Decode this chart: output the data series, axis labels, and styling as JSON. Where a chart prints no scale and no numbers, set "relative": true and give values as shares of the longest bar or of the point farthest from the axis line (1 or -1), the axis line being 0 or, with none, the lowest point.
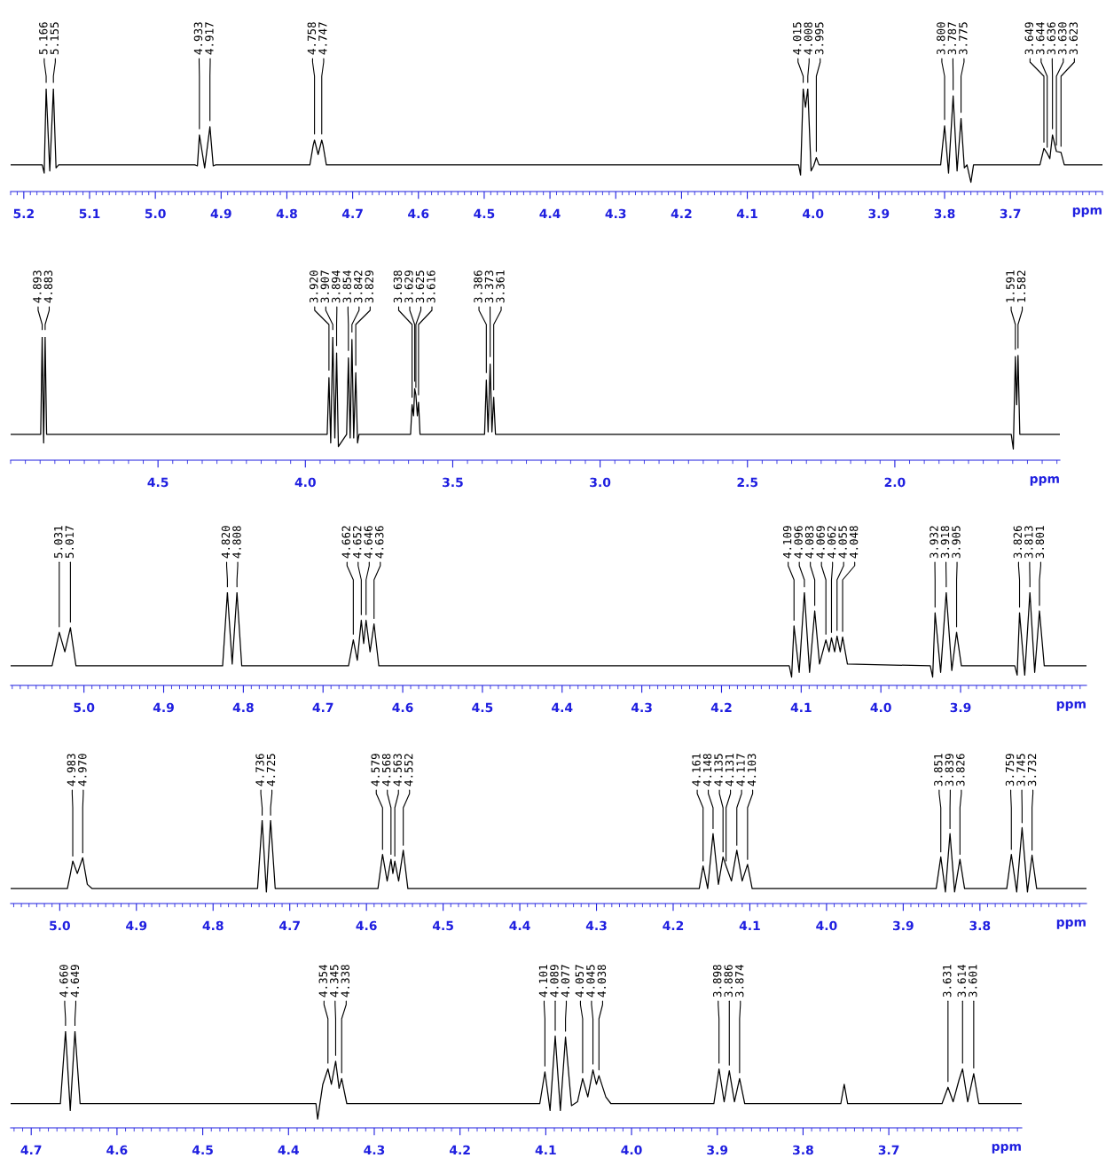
{
  "chart_data": [
    {
      "type": "line",
      "relative": true,
      "color": "#000000",
      "xlabel": "ppm",
      "xlim": [
        5.22,
        3.56
      ],
      "xticks": [
        5.2,
        5.1,
        {
          "value": 5,
          "label": "5.0"
        },
        4.9,
        4.8,
        4.7,
        4.6,
        4.5,
        4.4,
        4.3,
        4.2,
        4.1,
        {
          "value": 4,
          "label": "4.0"
        },
        3.9,
        3.8,
        3.7
      ],
      "x": [
        5.22,
        5.172,
        5.169,
        5.166,
        5.1605,
        5.155,
        5.151,
        5.147,
        4.94,
        4.936,
        4.933,
        4.925,
        4.917,
        4.912,
        4.908,
        4.765,
        4.76,
        4.758,
        4.7525,
        4.747,
        4.745,
        4.74,
        4.022,
        4.019,
        4.015,
        4.0115,
        4.008,
        4.003,
        3.999,
        3.995,
        3.991,
        3.806,
        3.8,
        3.794,
        3.787,
        3.781,
        3.775,
        3.77,
        3.766,
        3.76,
        3.756,
        3.655,
        3.649,
        3.644,
        3.64,
        3.636,
        3.63,
        3.623,
        3.618,
        3.56
      ],
      "values": [
        0.26,
        0.26,
        0.18,
        1,
        0.2,
        1,
        0.23,
        0.26,
        0.26,
        0.25,
        0.55,
        0.23,
        0.63,
        0.25,
        0.26,
        0.26,
        0.45,
        0.5,
        0.36,
        0.5,
        0.45,
        0.26,
        0.26,
        0.16,
        1,
        0.82,
        1,
        0.2,
        0.25,
        0.33,
        0.26,
        0.26,
        0.64,
        0.18,
        0.93,
        0.2,
        0.71,
        0.23,
        0.26,
        0.09,
        0.26,
        0.26,
        0.42,
        0.37,
        0.32,
        0.55,
        0.39,
        0.38,
        0.26,
        0.26
      ],
      "annotations": [
        {
          "text": "5.166",
          "x": 5.166,
          "y": 1
        },
        {
          "text": "5.155",
          "x": 5.155,
          "y": 1
        },
        {
          "text": "4.933",
          "x": 4.933,
          "y": 0.55
        },
        {
          "text": "4.917",
          "x": 4.917,
          "y": 0.63
        },
        {
          "text": "4.758",
          "x": 4.758,
          "y": 0.5
        },
        {
          "text": "4.747",
          "x": 4.747,
          "y": 0.5
        },
        {
          "text": "4.015",
          "x": 4.015,
          "y": 1
        },
        {
          "text": "4.008",
          "x": 4.008,
          "y": 1
        },
        {
          "text": "3.995",
          "x": 3.995,
          "y": 0.33
        },
        {
          "text": "3.800",
          "x": 3.8,
          "y": 0.64
        },
        {
          "text": "3.787",
          "x": 3.787,
          "y": 0.93
        },
        {
          "text": "3.775",
          "x": 3.775,
          "y": 0.71
        },
        {
          "text": "3.649",
          "x": 3.649,
          "y": 0.42
        },
        {
          "text": "3.644",
          "x": 3.644,
          "y": 0.37
        },
        {
          "text": "3.636",
          "x": 3.636,
          "y": 0.55
        },
        {
          "text": "3.630",
          "x": 3.63,
          "y": 0.39
        },
        {
          "text": "3.623",
          "x": 3.623,
          "y": 0.38
        }
      ]
    },
    {
      "type": "line",
      "relative": true,
      "color": "#000000",
      "xlabel": "ppm",
      "xlim": [
        5.0,
        1.44
      ],
      "xticks": [
        4.5,
        {
          "value": 4,
          "label": "4.0"
        },
        3.5,
        {
          "value": 3,
          "label": "3.0"
        },
        2.5,
        {
          "value": 2,
          "label": "2.0"
        }
      ],
      "x": [
        5.0,
        4.898,
        4.893,
        4.888,
        4.883,
        4.878,
        3.926,
        3.92,
        3.914,
        3.907,
        3.9,
        3.894,
        3.888,
        3.86,
        3.854,
        3.848,
        3.842,
        3.836,
        3.829,
        3.823,
        3.818,
        3.643,
        3.638,
        3.633,
        3.629,
        3.625,
        3.62,
        3.616,
        3.611,
        3.392,
        3.386,
        3.38,
        3.373,
        3.367,
        3.361,
        3.355,
        1.605,
        1.598,
        1.591,
        1.5865,
        1.582,
        1.576,
        1.44
      ],
      "values": [
        0.21,
        0.21,
        1,
        0.14,
        1,
        0.21,
        0.21,
        0.67,
        0.14,
        1,
        0.18,
        0.87,
        0.11,
        0.21,
        0.83,
        0.18,
        0.98,
        0.18,
        0.71,
        0.14,
        0.21,
        0.21,
        0.45,
        0.36,
        0.58,
        0.53,
        0.36,
        0.47,
        0.21,
        0.21,
        0.65,
        0.23,
        0.78,
        0.23,
        0.51,
        0.21,
        0.21,
        0.09,
        0.84,
        0.45,
        0.85,
        0.21,
        0.21
      ],
      "annotations": [
        {
          "text": "4.893",
          "x": 4.893,
          "y": 1
        },
        {
          "text": "4.883",
          "x": 4.883,
          "y": 1
        },
        {
          "text": "3.920",
          "x": 3.92,
          "y": 0.67
        },
        {
          "text": "3.907",
          "x": 3.907,
          "y": 1
        },
        {
          "text": "3.894",
          "x": 3.894,
          "y": 0.87
        },
        {
          "text": "3.854",
          "x": 3.854,
          "y": 0.83
        },
        {
          "text": "3.842",
          "x": 3.842,
          "y": 0.98
        },
        {
          "text": "3.829",
          "x": 3.829,
          "y": 0.71
        },
        {
          "text": "3.638",
          "x": 3.638,
          "y": 0.45
        },
        {
          "text": "3.629",
          "x": 3.629,
          "y": 0.58
        },
        {
          "text": "3.625",
          "x": 3.625,
          "y": 0.53
        },
        {
          "text": "3.616",
          "x": 3.616,
          "y": 0.47
        },
        {
          "text": "3.386",
          "x": 3.386,
          "y": 0.65
        },
        {
          "text": "3.373",
          "x": 3.373,
          "y": 0.78
        },
        {
          "text": "3.361",
          "x": 3.361,
          "y": 0.51
        },
        {
          "text": "1.591",
          "x": 1.591,
          "y": 0.84
        },
        {
          "text": "1.582",
          "x": 1.582,
          "y": 0.85
        }
      ]
    },
    {
      "type": "line",
      "relative": true,
      "color": "#000000",
      "xlabel": "ppm",
      "xlim": [
        5.092,
        3.742
      ],
      "xticks": [
        {
          "value": 5,
          "label": "5.0"
        },
        4.9,
        4.8,
        4.7,
        4.6,
        4.5,
        4.4,
        4.3,
        4.2,
        4.1,
        {
          "value": 4,
          "label": "4.0"
        },
        3.9
      ],
      "x": [
        5.092,
        5.04,
        5.031,
        5.024,
        5.017,
        5.01,
        4.826,
        4.82,
        4.814,
        4.808,
        4.802,
        4.668,
        4.662,
        4.657,
        4.652,
        4.649,
        4.646,
        4.641,
        4.636,
        4.63,
        4.115,
        4.112,
        4.109,
        4.1025,
        4.096,
        4.0895,
        4.083,
        4.077,
        4.069,
        4.065,
        4.062,
        4.058,
        4.055,
        4.051,
        4.048,
        4.042,
        3.938,
        3.935,
        3.932,
        3.925,
        3.918,
        3.911,
        3.905,
        3.899,
        3.832,
        3.829,
        3.826,
        3.8195,
        3.813,
        3.807,
        3.801,
        3.795,
        3.742
      ],
      "values": [
        0.21,
        0.21,
        0.57,
        0.36,
        0.62,
        0.21,
        0.21,
        1,
        0.23,
        1,
        0.21,
        0.21,
        0.49,
        0.27,
        0.7,
        0.45,
        0.7,
        0.36,
        0.66,
        0.21,
        0.21,
        0.09,
        0.64,
        0.14,
        1,
        0.14,
        0.8,
        0.23,
        0.49,
        0.36,
        0.51,
        0.36,
        0.53,
        0.36,
        0.52,
        0.23,
        0.21,
        0.09,
        0.78,
        0.14,
        1,
        0.16,
        0.57,
        0.21,
        0.21,
        0.11,
        0.78,
        0.11,
        1,
        0.14,
        0.8,
        0.21,
        0.21
      ],
      "annotations": [
        {
          "text": "5.031",
          "x": 5.031,
          "y": 0.57
        },
        {
          "text": "5.017",
          "x": 5.017,
          "y": 0.62
        },
        {
          "text": "4.820",
          "x": 4.82,
          "y": 1
        },
        {
          "text": "4.808",
          "x": 4.808,
          "y": 1
        },
        {
          "text": "4.662",
          "x": 4.662,
          "y": 0.49
        },
        {
          "text": "4.652",
          "x": 4.652,
          "y": 0.7
        },
        {
          "text": "4.646",
          "x": 4.646,
          "y": 0.7
        },
        {
          "text": "4.636",
          "x": 4.636,
          "y": 0.66
        },
        {
          "text": "4.109",
          "x": 4.109,
          "y": 0.64
        },
        {
          "text": "4.096",
          "x": 4.096,
          "y": 1
        },
        {
          "text": "4.083",
          "x": 4.083,
          "y": 0.8
        },
        {
          "text": "4.069",
          "x": 4.069,
          "y": 0.49
        },
        {
          "text": "4.062",
          "x": 4.062,
          "y": 0.51
        },
        {
          "text": "4.055",
          "x": 4.055,
          "y": 0.53
        },
        {
          "text": "4.048",
          "x": 4.048,
          "y": 0.52
        },
        {
          "text": "3.932",
          "x": 3.932,
          "y": 0.78
        },
        {
          "text": "3.918",
          "x": 3.918,
          "y": 1
        },
        {
          "text": "3.905",
          "x": 3.905,
          "y": 0.57
        },
        {
          "text": "3.826",
          "x": 3.826,
          "y": 0.78
        },
        {
          "text": "3.813",
          "x": 3.813,
          "y": 1
        },
        {
          "text": "3.801",
          "x": 3.801,
          "y": 0.8
        }
      ]
    },
    {
      "type": "line",
      "relative": true,
      "color": "#000000",
      "xlabel": "ppm",
      "xlim": [
        5.064,
        3.661
      ],
      "xticks": [
        {
          "value": 5,
          "label": "5.0"
        },
        4.9,
        4.8,
        4.7,
        4.6,
        4.5,
        4.4,
        4.3,
        4.2,
        4.1,
        {
          "value": 4,
          "label": "4.0"
        },
        3.9,
        3.8
      ],
      "x": [
        5.064,
        4.99,
        4.986,
        4.983,
        4.977,
        4.97,
        4.964,
        4.958,
        4.742,
        4.736,
        4.7305,
        4.725,
        4.719,
        4.585,
        4.579,
        4.573,
        4.568,
        4.5655,
        4.563,
        4.558,
        4.552,
        4.546,
        4.166,
        4.161,
        4.155,
        4.148,
        4.141,
        4.135,
        4.131,
        4.124,
        4.117,
        4.11,
        4.103,
        4.097,
        3.857,
        3.851,
        3.845,
        3.839,
        3.833,
        3.826,
        3.82,
        3.765,
        3.759,
        3.752,
        3.745,
        3.738,
        3.732,
        3.726,
        3.661
      ],
      "values": [
        0.18,
        0.18,
        0.36,
        0.51,
        0.36,
        0.55,
        0.23,
        0.18,
        0.18,
        1,
        0.14,
        1,
        0.18,
        0.18,
        0.59,
        0.27,
        0.53,
        0.36,
        0.51,
        0.27,
        0.64,
        0.18,
        0.18,
        0.45,
        0.18,
        0.84,
        0.23,
        0.56,
        0.45,
        0.27,
        0.64,
        0.27,
        0.47,
        0.18,
        0.18,
        0.56,
        0.14,
        0.84,
        0.14,
        0.53,
        0.18,
        0.18,
        0.59,
        0.14,
        0.91,
        0.14,
        0.58,
        0.18,
        0.18
      ],
      "annotations": [
        {
          "text": "4.983",
          "x": 4.983,
          "y": 0.51
        },
        {
          "text": "4.970",
          "x": 4.97,
          "y": 0.55
        },
        {
          "text": "4.736",
          "x": 4.736,
          "y": 1
        },
        {
          "text": "4.725",
          "x": 4.725,
          "y": 1
        },
        {
          "text": "4.579",
          "x": 4.579,
          "y": 0.59
        },
        {
          "text": "4.568",
          "x": 4.568,
          "y": 0.53
        },
        {
          "text": "4.563",
          "x": 4.563,
          "y": 0.51
        },
        {
          "text": "4.552",
          "x": 4.552,
          "y": 0.64
        },
        {
          "text": "4.161",
          "x": 4.161,
          "y": 0.45
        },
        {
          "text": "4.148",
          "x": 4.148,
          "y": 0.84
        },
        {
          "text": "4.135",
          "x": 4.135,
          "y": 0.56
        },
        {
          "text": "4.131",
          "x": 4.131,
          "y": 0.45
        },
        {
          "text": "4.117",
          "x": 4.117,
          "y": 0.64
        },
        {
          "text": "4.103",
          "x": 4.103,
          "y": 0.47
        },
        {
          "text": "3.851",
          "x": 3.851,
          "y": 0.56
        },
        {
          "text": "3.839",
          "x": 3.839,
          "y": 0.84
        },
        {
          "text": "3.826",
          "x": 3.826,
          "y": 0.53
        },
        {
          "text": "3.759",
          "x": 3.759,
          "y": 0.59
        },
        {
          "text": "3.745",
          "x": 3.745,
          "y": 0.91
        },
        {
          "text": "3.732",
          "x": 3.732,
          "y": 0.58
        }
      ]
    },
    {
      "type": "line",
      "relative": true,
      "color": "#000000",
      "xlabel": "ppm",
      "xlim": [
        4.724,
        3.545
      ],
      "xticks": [
        4.7,
        4.6,
        4.5,
        4.4,
        4.3,
        4.2,
        4.1,
        {
          "value": 4,
          "label": "4.0"
        },
        3.9,
        3.8,
        3.7
      ],
      "x": [
        4.724,
        4.666,
        4.66,
        4.6545,
        4.649,
        4.643,
        4.368,
        4.366,
        4.36,
        4.354,
        4.35,
        4.345,
        4.341,
        4.338,
        4.332,
        4.107,
        4.101,
        4.095,
        4.089,
        4.083,
        4.077,
        4.07,
        4.063,
        4.057,
        4.051,
        4.045,
        4.041,
        4.038,
        4.03,
        4.024,
        3.904,
        3.898,
        3.892,
        3.886,
        3.88,
        3.874,
        3.868,
        3.756,
        3.752,
        3.748,
        3.638,
        3.631,
        3.625,
        3.618,
        3.614,
        3.608,
        3.601,
        3.595,
        3.545
      ],
      "values": [
        0.25,
        0.25,
        1,
        0.18,
        1,
        0.25,
        0.25,
        0.09,
        0.45,
        0.61,
        0.45,
        0.69,
        0.41,
        0.51,
        0.25,
        0.25,
        0.58,
        0.18,
        0.95,
        0.18,
        0.94,
        0.23,
        0.27,
        0.51,
        0.32,
        0.6,
        0.45,
        0.54,
        0.32,
        0.25,
        0.25,
        0.61,
        0.27,
        0.59,
        0.27,
        0.51,
        0.25,
        0.25,
        0.45,
        0.25,
        0.25,
        0.42,
        0.27,
        0.5,
        0.61,
        0.27,
        0.56,
        0.25,
        0.25
      ],
      "annotations": [
        {
          "text": "4.660",
          "x": 4.66,
          "y": 1
        },
        {
          "text": "4.649",
          "x": 4.649,
          "y": 1
        },
        {
          "text": "4.354",
          "x": 4.354,
          "y": 0.61
        },
        {
          "text": "4.345",
          "x": 4.345,
          "y": 0.69
        },
        {
          "text": "4.338",
          "x": 4.338,
          "y": 0.51
        },
        {
          "text": "4.101",
          "x": 4.101,
          "y": 0.58
        },
        {
          "text": "4.089",
          "x": 4.089,
          "y": 0.95
        },
        {
          "text": "4.077",
          "x": 4.077,
          "y": 0.94
        },
        {
          "text": "4.057",
          "x": 4.057,
          "y": 0.51
        },
        {
          "text": "4.045",
          "x": 4.045,
          "y": 0.6
        },
        {
          "text": "4.038",
          "x": 4.038,
          "y": 0.54
        },
        {
          "text": "3.898",
          "x": 3.898,
          "y": 0.61
        },
        {
          "text": "3.886",
          "x": 3.886,
          "y": 0.59
        },
        {
          "text": "3.874",
          "x": 3.874,
          "y": 0.51
        },
        {
          "text": "3.631",
          "x": 3.631,
          "y": 0.42
        },
        {
          "text": "3.614",
          "x": 3.614,
          "y": 0.61
        },
        {
          "text": "3.601",
          "x": 3.601,
          "y": 0.56
        }
      ]
    }
  ]
}
